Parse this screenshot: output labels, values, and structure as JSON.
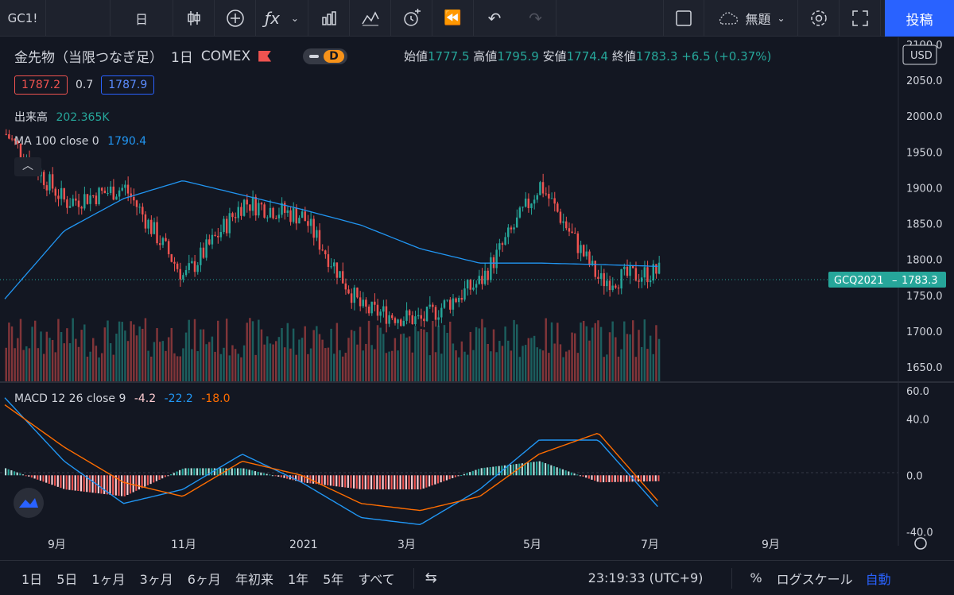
{
  "toolbar": {
    "symbol": "GC1!",
    "interval": "日",
    "layout_name": "無題",
    "post_label": "投稿",
    "icons": [
      "candles-icon",
      "plus-circle-icon",
      "fx-icon",
      "chevron-down-icon",
      "bars-icon",
      "indicator-icon",
      "alarm-icon",
      "replay-icon",
      "undo-icon",
      "redo-icon",
      "layout-icon",
      "cloud-icon",
      "chevron-down-icon",
      "gear-icon",
      "fullscreen-icon",
      "camera-icon"
    ]
  },
  "legend": {
    "title": "金先物（当限つなぎ足）",
    "interval": "1日",
    "exchange": "COMEX",
    "badge": "D",
    "open_label": "始値",
    "open": "1777.5",
    "high_label": "高値",
    "high": "1795.9",
    "low_label": "安値",
    "low": "1774.4",
    "close_label": "終値",
    "close": "1783.3",
    "change": "+6.5 (+0.37%)",
    "bid": "1787.2",
    "spread": "0.7",
    "ask": "1787.9"
  },
  "indicators": {
    "volume_label": "出来高",
    "volume_value": "202.365K",
    "ma_label": "MA 100 close 0",
    "ma_value": "1790.4",
    "macd_label": "MACD 12 26 close 9",
    "macd_hist": "-4.2",
    "macd_line": "-22.2",
    "macd_signal": "-18.0"
  },
  "price_axis": {
    "currency": "USD",
    "ticks": [
      "2100.0",
      "2050.0",
      "2000.0",
      "1950.0",
      "1900.0",
      "1850.0",
      "1800.0",
      "1750.0",
      "1700.0",
      "1650.0"
    ],
    "last_label": "GCQ2021",
    "last_value": "1783.3",
    "macd_ticks": [
      "60.0",
      "40.0",
      "0.0",
      "-40.0"
    ]
  },
  "time_axis": {
    "ticks": [
      "9月",
      "11月",
      "2021",
      "3月",
      "5月",
      "7月",
      "9月"
    ]
  },
  "bottom_bar": {
    "ranges": [
      "1日",
      "5日",
      "1ヶ月",
      "3ヶ月",
      "6ヶ月",
      "年初来",
      "1年",
      "5年",
      "すべて"
    ],
    "time": "23:19:33 (UTC+9)",
    "percent": "%",
    "log": "ログスケール",
    "auto": "自動"
  },
  "chart_data": {
    "type": "candlestick",
    "ylim": [
      1630,
      2110
    ],
    "x": [
      "2020-08",
      "2020-09",
      "2020-10",
      "2020-11",
      "2020-12",
      "2021-01",
      "2021-02",
      "2021-03",
      "2021-04",
      "2021-05",
      "2021-06",
      "2021-07"
    ],
    "close": [
      1975,
      1880,
      1900,
      1775,
      1880,
      1860,
      1730,
      1715,
      1770,
      1905,
      1770,
      1783.3
    ],
    "ma100": [
      1745,
      1840,
      1885,
      1910,
      1890,
      1870,
      1848,
      1815,
      1795,
      1795,
      1793,
      1790.4
    ],
    "macd_ylim": [
      -50,
      65
    ],
    "macd_line": [
      55,
      10,
      -20,
      -10,
      15,
      -5,
      -30,
      -35,
      -10,
      25,
      25,
      -22.2
    ],
    "macd_signal": [
      50,
      20,
      -5,
      -15,
      10,
      0,
      -20,
      -25,
      -15,
      15,
      30,
      -18.0
    ],
    "colors": {
      "up": "#26a69a",
      "down": "#ef5350",
      "ma": "#2196f3",
      "macd": "#2196f3",
      "signal": "#ff6d00"
    }
  }
}
